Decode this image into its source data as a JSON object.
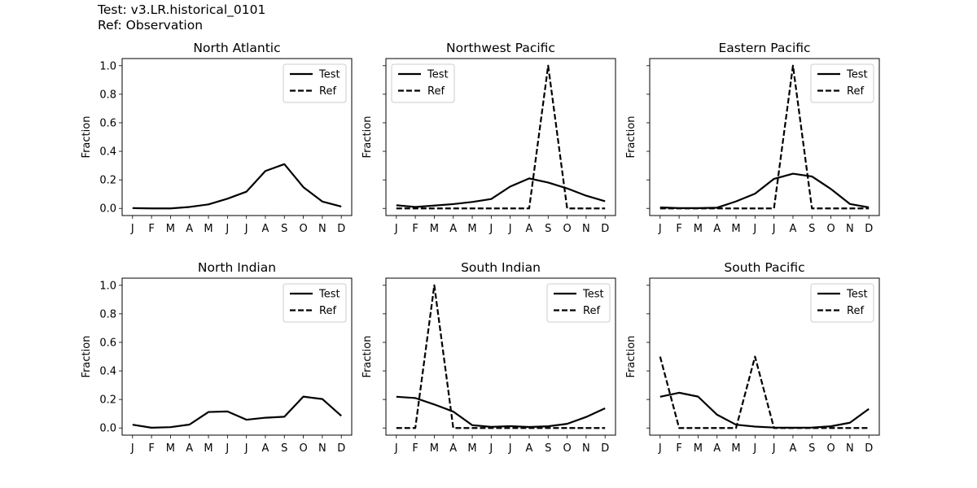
{
  "header": {
    "test_label": "Test: v3.LR.historical_0101",
    "ref_label": "Ref: Observation"
  },
  "style": {
    "line_color": "#000000",
    "background": "#ffffff"
  },
  "chart_data": [
    {
      "type": "line",
      "title": "North Atlantic",
      "categories": [
        "J",
        "F",
        "M",
        "A",
        "M",
        "J",
        "J",
        "A",
        "S",
        "O",
        "N",
        "D"
      ],
      "xlabel": "",
      "ylabel": "Fraction",
      "ylim": [
        -0.05,
        1.05
      ],
      "yticks": [
        "0.0",
        "0.2",
        "0.4",
        "0.6",
        "0.8",
        "1.0"
      ],
      "show_ytick_labels": true,
      "legend": [
        "Test",
        "Ref"
      ],
      "legend_loc": "upper right",
      "series": [
        {
          "name": "Test",
          "linestyle": "solid",
          "values": [
            0.002,
            0.0,
            0.0,
            0.01,
            0.028,
            0.068,
            0.117,
            0.262,
            0.31,
            0.149,
            0.048,
            0.013
          ]
        },
        {
          "name": "Ref",
          "linestyle": "dashed",
          "values": null
        }
      ]
    },
    {
      "type": "line",
      "title": "Northwest Pacific",
      "categories": [
        "J",
        "F",
        "M",
        "A",
        "M",
        "J",
        "J",
        "A",
        "S",
        "O",
        "N",
        "D"
      ],
      "xlabel": "",
      "ylabel": "Fraction",
      "ylim": [
        -0.05,
        1.05
      ],
      "yticks": [
        "0.0",
        "0.2",
        "0.4",
        "0.6",
        "0.8",
        "1.0"
      ],
      "show_ytick_labels": false,
      "legend": [
        "Test",
        "Ref"
      ],
      "legend_loc": "upper left",
      "series": [
        {
          "name": "Test",
          "linestyle": "solid",
          "values": [
            0.022,
            0.01,
            0.02,
            0.03,
            0.045,
            0.066,
            0.153,
            0.21,
            0.181,
            0.14,
            0.089,
            0.05
          ]
        },
        {
          "name": "Ref",
          "linestyle": "dashed",
          "values": [
            0,
            0,
            0,
            0,
            0,
            0,
            0,
            0,
            1.0,
            0,
            0,
            0
          ]
        }
      ]
    },
    {
      "type": "line",
      "title": "Eastern Pacific",
      "categories": [
        "J",
        "F",
        "M",
        "A",
        "M",
        "J",
        "J",
        "A",
        "S",
        "O",
        "N",
        "D"
      ],
      "xlabel": "",
      "ylabel": "Fraction",
      "ylim": [
        -0.05,
        1.05
      ],
      "yticks": [
        "0.0",
        "0.2",
        "0.4",
        "0.6",
        "0.8",
        "1.0"
      ],
      "show_ytick_labels": false,
      "legend": [
        "Test",
        "Ref"
      ],
      "legend_loc": "upper right",
      "series": [
        {
          "name": "Test",
          "linestyle": "solid",
          "values": [
            0.007,
            0.002,
            0.002,
            0.005,
            0.049,
            0.103,
            0.207,
            0.243,
            0.224,
            0.136,
            0.031,
            0.007
          ]
        },
        {
          "name": "Ref",
          "linestyle": "dashed",
          "values": [
            0,
            0,
            0,
            0,
            0,
            0,
            0,
            1.0,
            0,
            0,
            0,
            0
          ]
        }
      ]
    },
    {
      "type": "line",
      "title": "North Indian",
      "categories": [
        "J",
        "F",
        "M",
        "A",
        "M",
        "J",
        "J",
        "A",
        "S",
        "O",
        "N",
        "D"
      ],
      "xlabel": "",
      "ylabel": "Fraction",
      "ylim": [
        -0.05,
        1.05
      ],
      "yticks": [
        "0.0",
        "0.2",
        "0.4",
        "0.6",
        "0.8",
        "1.0"
      ],
      "show_ytick_labels": true,
      "legend": [
        "Test",
        "Ref"
      ],
      "legend_loc": "upper right",
      "series": [
        {
          "name": "Test",
          "linestyle": "solid",
          "values": [
            0.023,
            0.002,
            0.006,
            0.024,
            0.112,
            0.116,
            0.058,
            0.072,
            0.079,
            0.22,
            0.203,
            0.085
          ]
        },
        {
          "name": "Ref",
          "linestyle": "dashed",
          "values": null
        }
      ]
    },
    {
      "type": "line",
      "title": "South Indian",
      "categories": [
        "J",
        "F",
        "M",
        "A",
        "M",
        "J",
        "J",
        "A",
        "S",
        "O",
        "N",
        "D"
      ],
      "xlabel": "",
      "ylabel": "Fraction",
      "ylim": [
        -0.05,
        1.05
      ],
      "yticks": [
        "0.0",
        "0.2",
        "0.4",
        "0.6",
        "0.8",
        "1.0"
      ],
      "show_ytick_labels": false,
      "legend": [
        "Test",
        "Ref"
      ],
      "legend_loc": "upper right",
      "series": [
        {
          "name": "Test",
          "linestyle": "solid",
          "values": [
            0.219,
            0.21,
            0.165,
            0.115,
            0.02,
            0.008,
            0.013,
            0.007,
            0.012,
            0.029,
            0.077,
            0.138
          ]
        },
        {
          "name": "Ref",
          "linestyle": "dashed",
          "values": [
            0,
            0,
            1.0,
            0,
            0,
            0,
            0,
            0,
            0,
            0,
            0,
            0
          ]
        }
      ]
    },
    {
      "type": "line",
      "title": "South Pacific",
      "categories": [
        "J",
        "F",
        "M",
        "A",
        "M",
        "J",
        "J",
        "A",
        "S",
        "O",
        "N",
        "D"
      ],
      "xlabel": "",
      "ylabel": "Fraction",
      "ylim": [
        -0.05,
        1.05
      ],
      "yticks": [
        "0.0",
        "0.2",
        "0.4",
        "0.6",
        "0.8",
        "1.0"
      ],
      "show_ytick_labels": false,
      "legend": [
        "Test",
        "Ref"
      ],
      "legend_loc": "upper right",
      "series": [
        {
          "name": "Test",
          "linestyle": "solid",
          "values": [
            0.219,
            0.247,
            0.22,
            0.093,
            0.023,
            0.01,
            0.003,
            0.002,
            0.003,
            0.012,
            0.037,
            0.134
          ]
        },
        {
          "name": "Ref",
          "linestyle": "dashed",
          "values": [
            0.5,
            0,
            0,
            0,
            0,
            0.5,
            0,
            0,
            0,
            0,
            0,
            0
          ]
        }
      ]
    }
  ]
}
